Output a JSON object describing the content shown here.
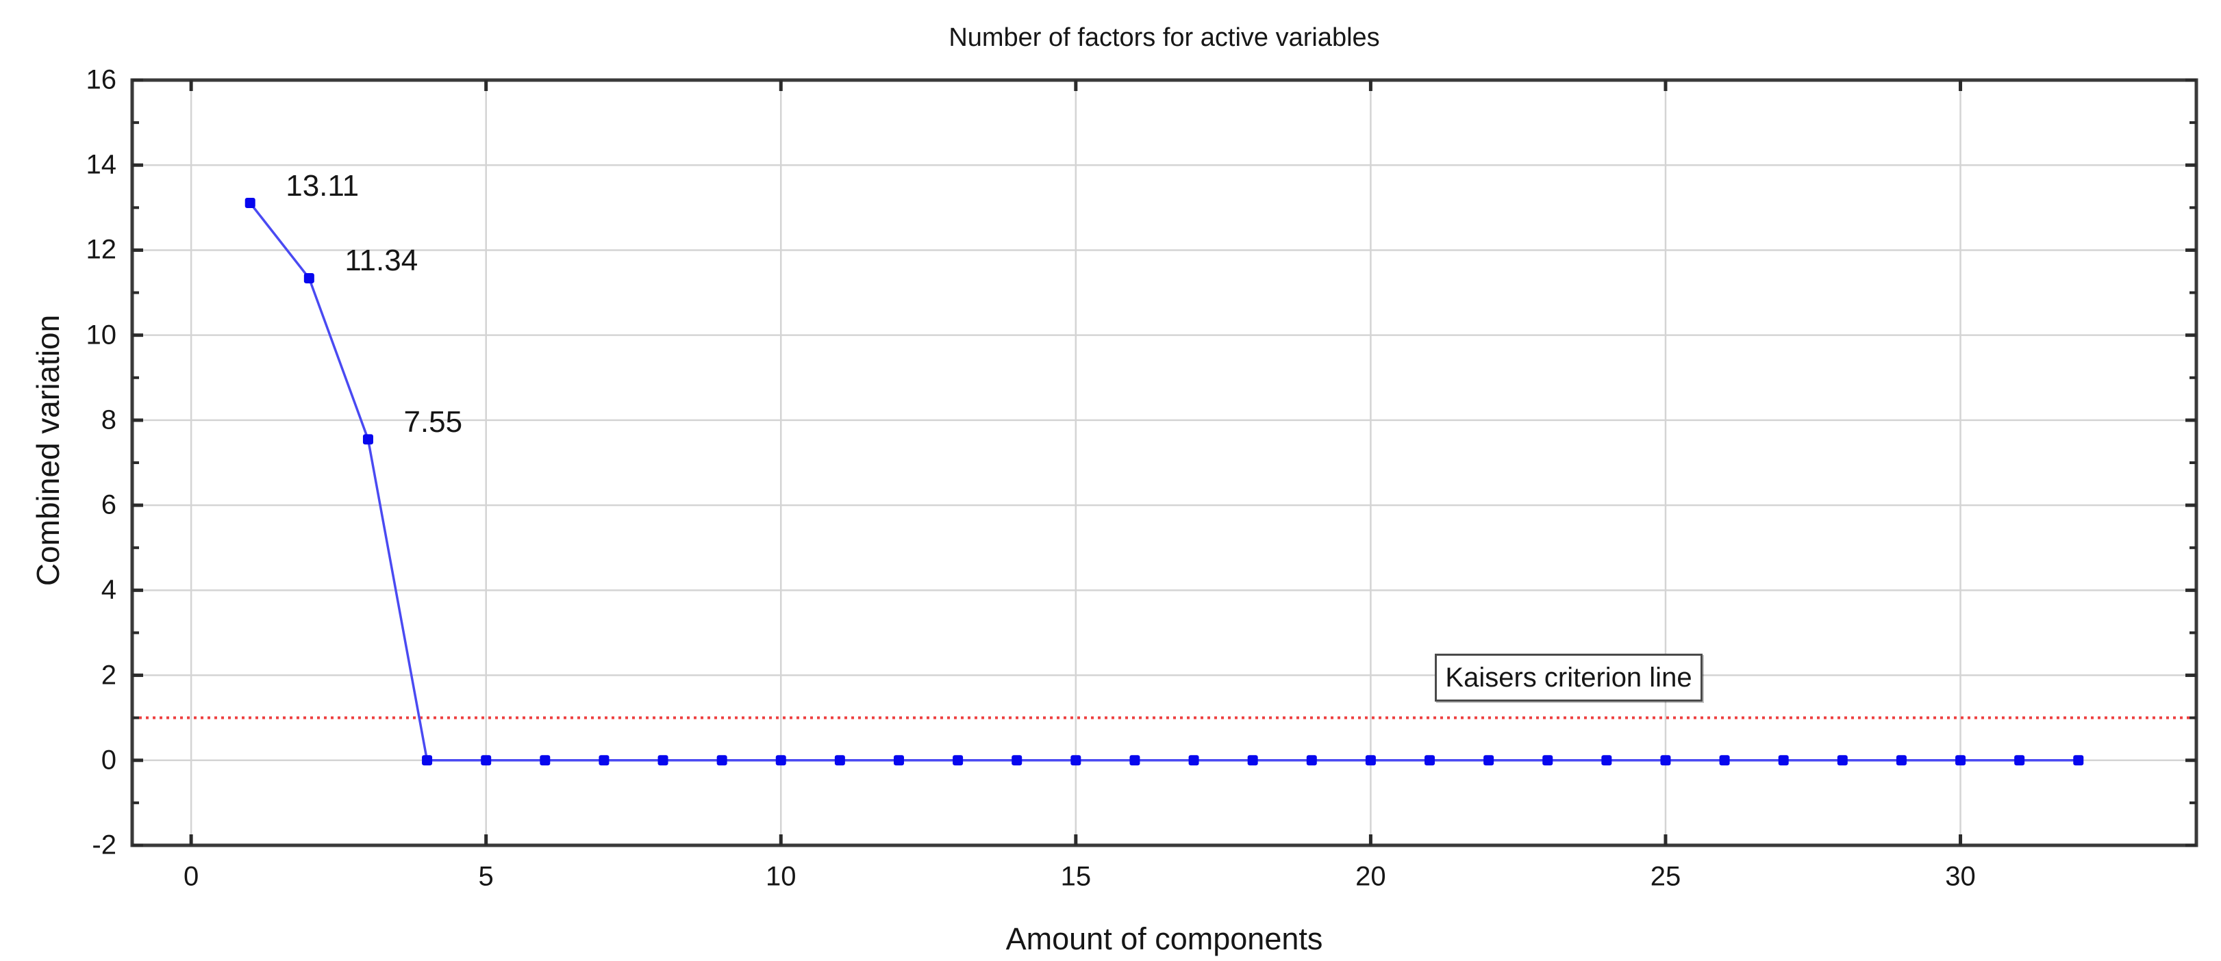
{
  "chart_data": {
    "type": "line",
    "title": "Number of factors for active variables",
    "xlabel": "Amount of components",
    "ylabel": "Combined variation",
    "x": [
      1,
      2,
      3,
      4,
      5,
      6,
      7,
      8,
      9,
      10,
      11,
      12,
      13,
      14,
      15,
      16,
      17,
      18,
      19,
      20,
      21,
      22,
      23,
      24,
      25,
      26,
      27,
      28,
      29,
      30,
      31,
      32
    ],
    "values": [
      13.11,
      11.34,
      7.55,
      0,
      0,
      0,
      0,
      0,
      0,
      0,
      0,
      0,
      0,
      0,
      0,
      0,
      0,
      0,
      0,
      0,
      0,
      0,
      0,
      0,
      0,
      0,
      0,
      0,
      0,
      0,
      0,
      0
    ],
    "point_labels": [
      {
        "x": 1,
        "text": "13.11"
      },
      {
        "x": 2,
        "text": "11.34"
      },
      {
        "x": 3,
        "text": "7.55"
      }
    ],
    "threshold_line": {
      "y": 1,
      "label": "Kaisers criterion line",
      "style": "dotted"
    },
    "xlim": [
      -1,
      34
    ],
    "ylim": [
      -2,
      16
    ],
    "x_ticks": [
      0,
      5,
      10,
      15,
      20,
      25,
      30
    ],
    "y_ticks": [
      -2,
      0,
      2,
      4,
      6,
      8,
      10,
      12,
      14,
      16
    ],
    "y_minor_step": 1,
    "grid": true,
    "legend_position": "none",
    "colors": {
      "series_line": "#4a4af2",
      "marker": "#0707ee",
      "threshold": "#ee4040",
      "grid": "#d4d4d4",
      "axis": "#3a3a3a",
      "text": "#161616"
    }
  }
}
